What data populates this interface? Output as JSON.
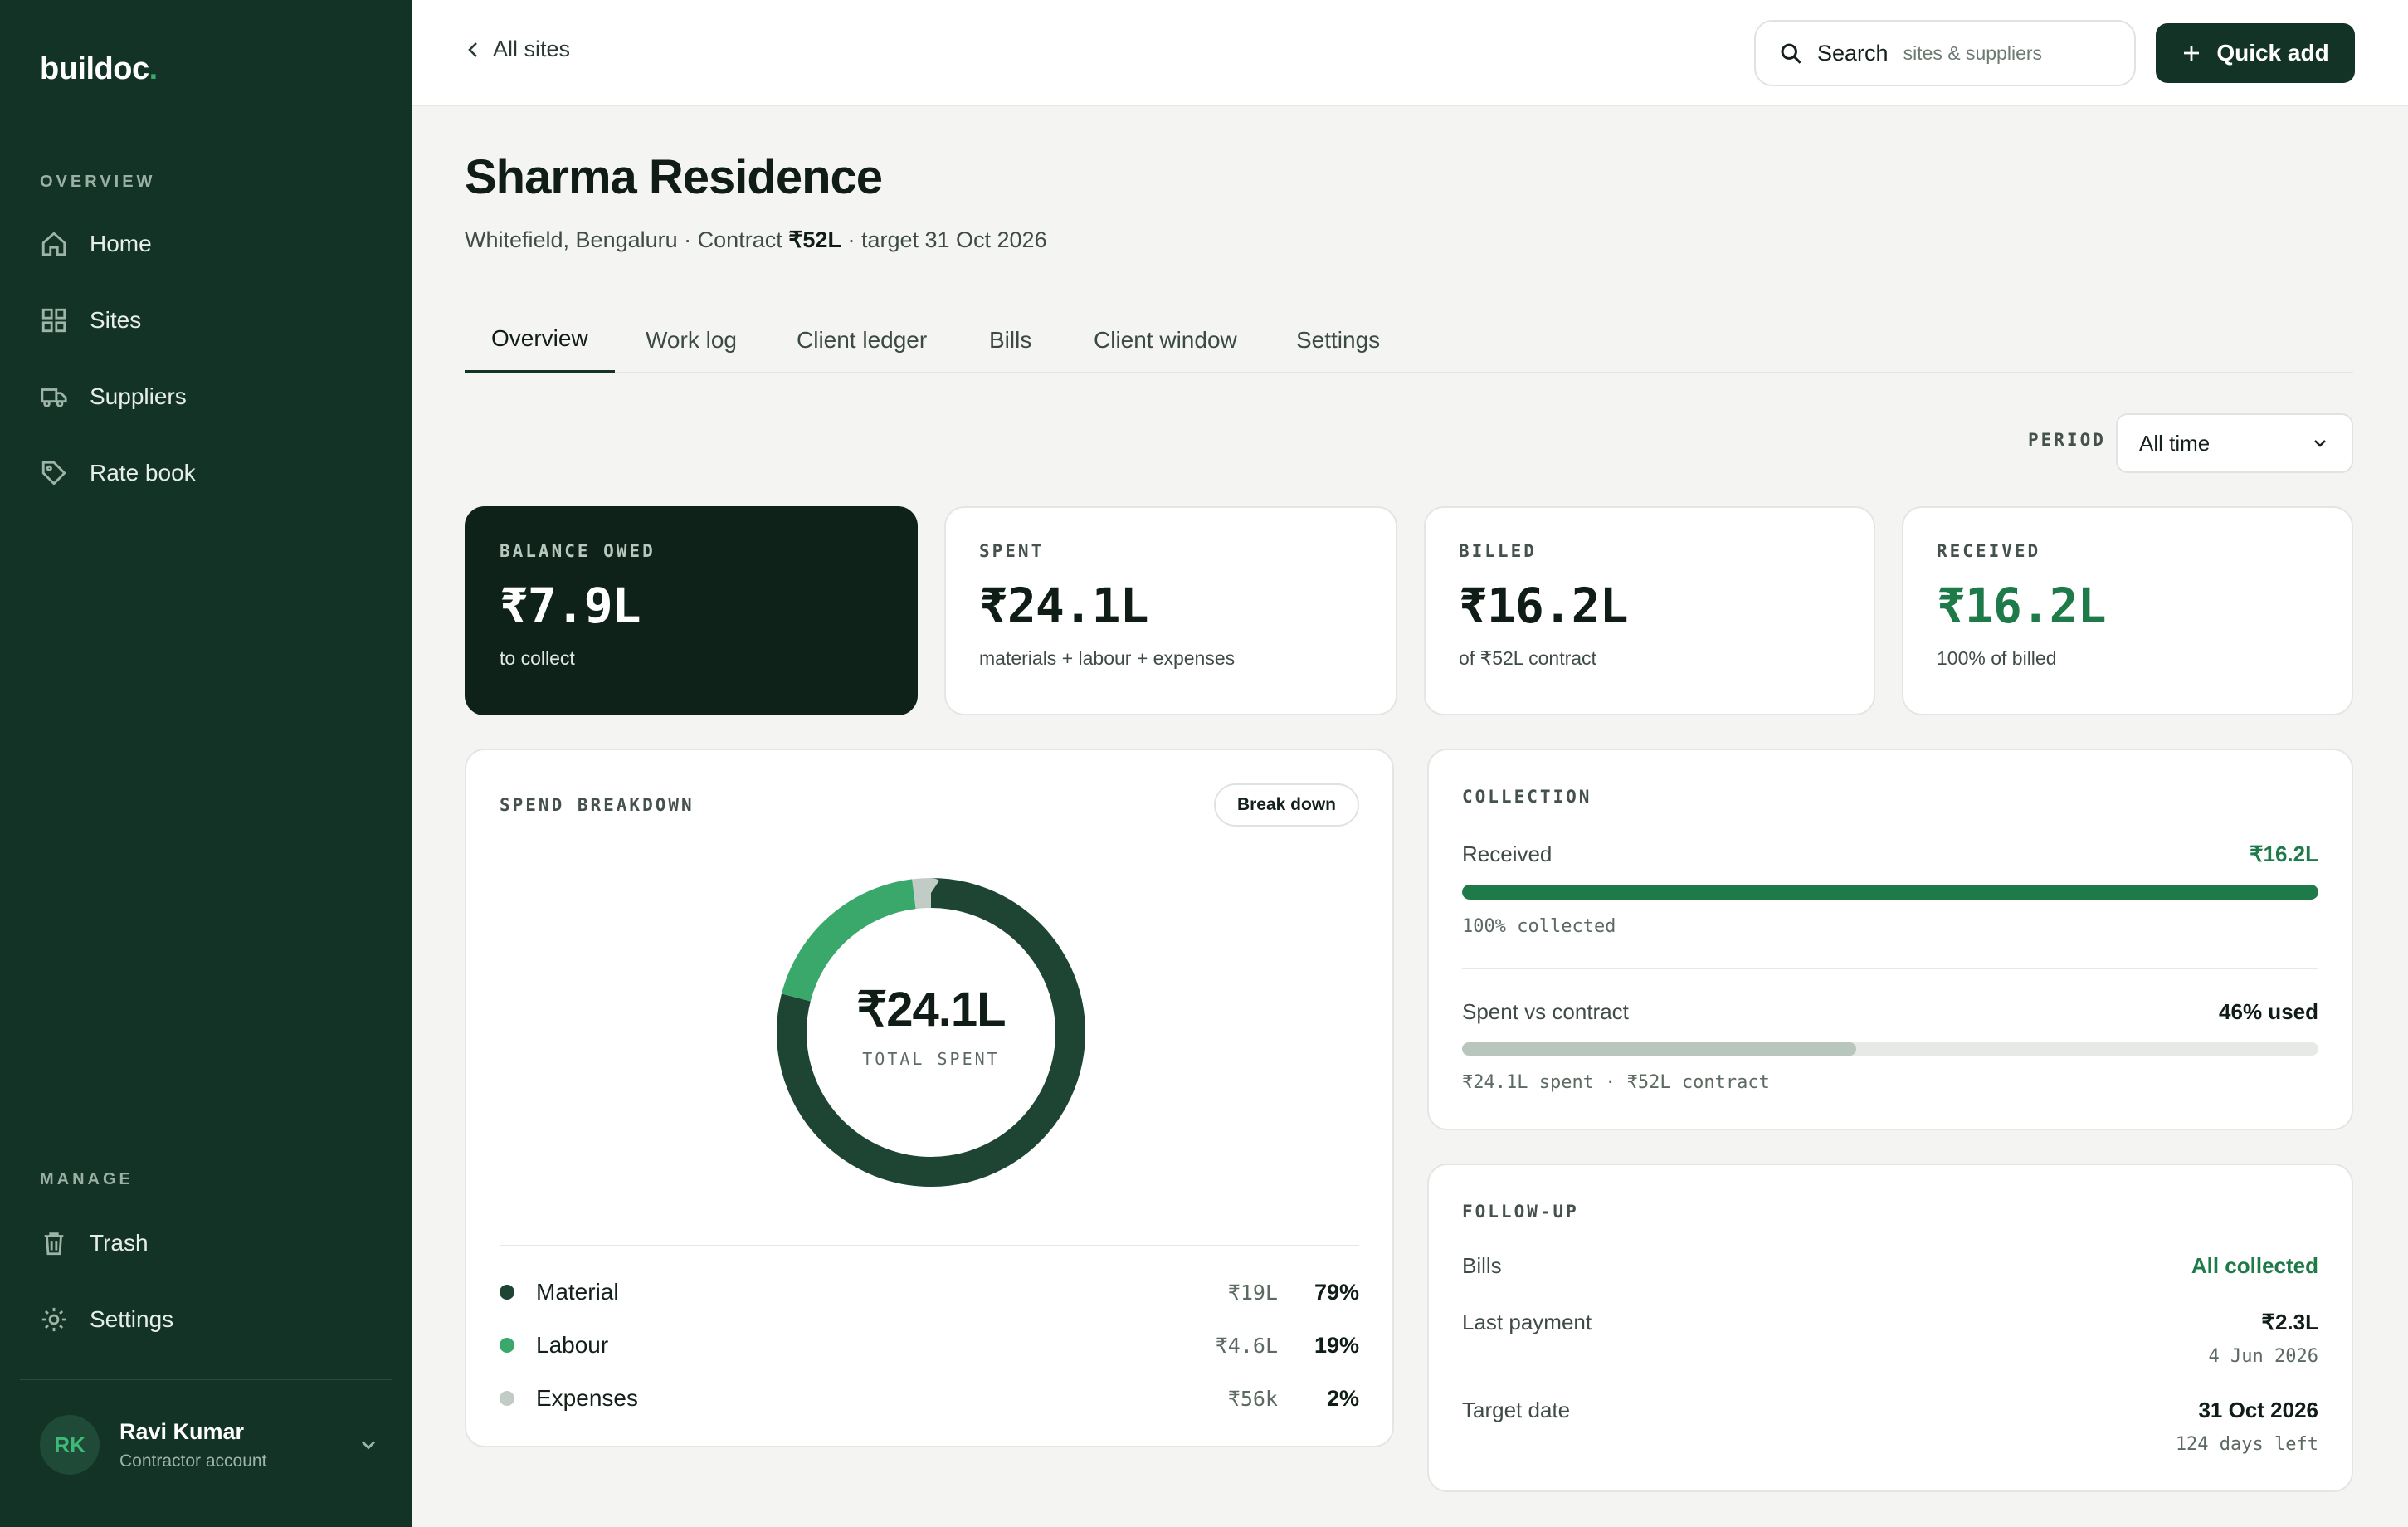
{
  "app": {
    "logo": "buildoc",
    "logo_dot": "."
  },
  "sidebar": {
    "overview_heading": "OVERVIEW",
    "nav": [
      {
        "label": "Home",
        "icon": "home-icon"
      },
      {
        "label": "Sites",
        "icon": "grid-icon"
      },
      {
        "label": "Suppliers",
        "icon": "truck-icon"
      },
      {
        "label": "Rate book",
        "icon": "tag-icon"
      }
    ],
    "manage_heading": "MANAGE",
    "manage": [
      {
        "label": "Trash",
        "icon": "trash-icon"
      },
      {
        "label": "Settings",
        "icon": "gear-icon"
      }
    ],
    "user": {
      "initials": "RK",
      "name": "Ravi Kumar",
      "role": "Contractor account"
    }
  },
  "topbar": {
    "back_label": "All sites",
    "search_label": "Search",
    "search_hint": "sites & suppliers",
    "quick_add_label": "Quick add"
  },
  "site": {
    "title": "Sharma Residence",
    "location": "Whitefield, Bengaluru",
    "contract_prefix": "· Contract",
    "contract_value": "₹52L",
    "target": "· target 31 Oct 2026"
  },
  "tabs": [
    {
      "label": "Overview",
      "active": true
    },
    {
      "label": "Work log"
    },
    {
      "label": "Client ledger"
    },
    {
      "label": "Bills"
    },
    {
      "label": "Client window"
    },
    {
      "label": "Settings"
    }
  ],
  "period": {
    "label": "PERIOD",
    "selected": "All time"
  },
  "stats": [
    {
      "label": "BALANCE OWED",
      "value": "₹7.9L",
      "sub": "to collect"
    },
    {
      "label": "SPENT",
      "value": "₹24.1L",
      "sub": "materials + labour + expenses"
    },
    {
      "label": "BILLED",
      "value": "₹16.2L",
      "sub": "of ₹52L contract"
    },
    {
      "label": "RECEIVED",
      "value": "₹16.2L",
      "sub": "100% of billed"
    }
  ],
  "spend": {
    "title": "SPEND BREAKDOWN",
    "button": "Break down",
    "total": "₹24.1L",
    "total_caption": "TOTAL SPENT",
    "items": [
      {
        "name": "Material",
        "amount": "₹19L",
        "pct": "79%",
        "fraction": 0.79,
        "color": "#1e4433"
      },
      {
        "name": "Labour",
        "amount": "₹4.6L",
        "pct": "19%",
        "fraction": 0.19,
        "color": "#3aa86b"
      },
      {
        "name": "Expenses",
        "amount": "₹56k",
        "pct": "2%",
        "fraction": 0.02,
        "color": "#c2ccc6"
      }
    ]
  },
  "collection": {
    "title": "COLLECTION",
    "received_label": "Received",
    "received_value": "₹16.2L",
    "received_fraction": 1.0,
    "received_note": "100% collected",
    "spent_label": "Spent vs contract",
    "spent_value": "46% used",
    "spent_fraction": 0.46,
    "spent_note": "₹24.1L spent · ₹52L contract"
  },
  "followup": {
    "title": "FOLLOW-UP",
    "bills_label": "Bills",
    "bills_value": "All collected",
    "last_payment_label": "Last payment",
    "last_payment_value": "₹2.3L",
    "last_payment_date": "4 Jun 2026",
    "target_label": "Target date",
    "target_value": "31 Oct 2026",
    "target_note": "124 days left"
  },
  "colors": {
    "brand": "#133326",
    "accent": "#3aa86b",
    "dark_card": "#0f2219"
  }
}
